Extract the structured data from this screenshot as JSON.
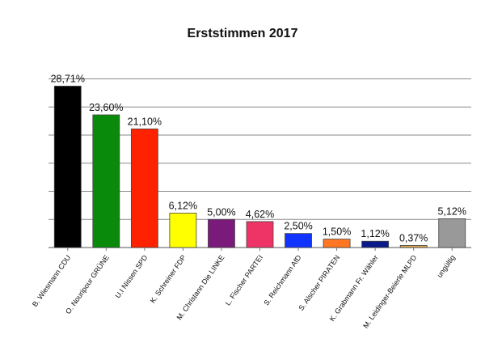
{
  "chart_data": {
    "type": "bar",
    "title": "Erststimmen 2017",
    "xlabel": "",
    "ylabel": "",
    "ylim": [
      0,
      30
    ],
    "y_gridlines": [
      0,
      5,
      10,
      15,
      20,
      25,
      30
    ],
    "grid": "horizontal",
    "legend": "none",
    "categories": [
      "B. Wiesmann CDU",
      "O. Nouripour GRÜNE",
      "U.I Nissen SPD",
      "K. Schreiner FDP",
      "M. Christann Die LINKE",
      "L. Fischer PARTEI",
      "S. Reichmann AfD",
      "S. Alscher PIRATEN",
      "K. Grabmann Fr. Wähler",
      "M. Leidinger-Beierle MLPD",
      "ungültig"
    ],
    "values": [
      28.71,
      23.6,
      21.1,
      6.12,
      5.0,
      4.62,
      2.5,
      1.5,
      1.12,
      0.37,
      5.12
    ],
    "value_labels": [
      "28,71%",
      "23,60%",
      "21,10%",
      "6,12%",
      "5,00%",
      "4,62%",
      "2,50%",
      "1,50%",
      "1,12%",
      "0,37%",
      "5,12%"
    ],
    "colors": [
      "#000000",
      "#0a8a0a",
      "#ff2200",
      "#ffff00",
      "#7a1a7a",
      "#ee3366",
      "#1133ff",
      "#ff7722",
      "#0a1a8a",
      "#ddaa55",
      "#999999"
    ]
  }
}
